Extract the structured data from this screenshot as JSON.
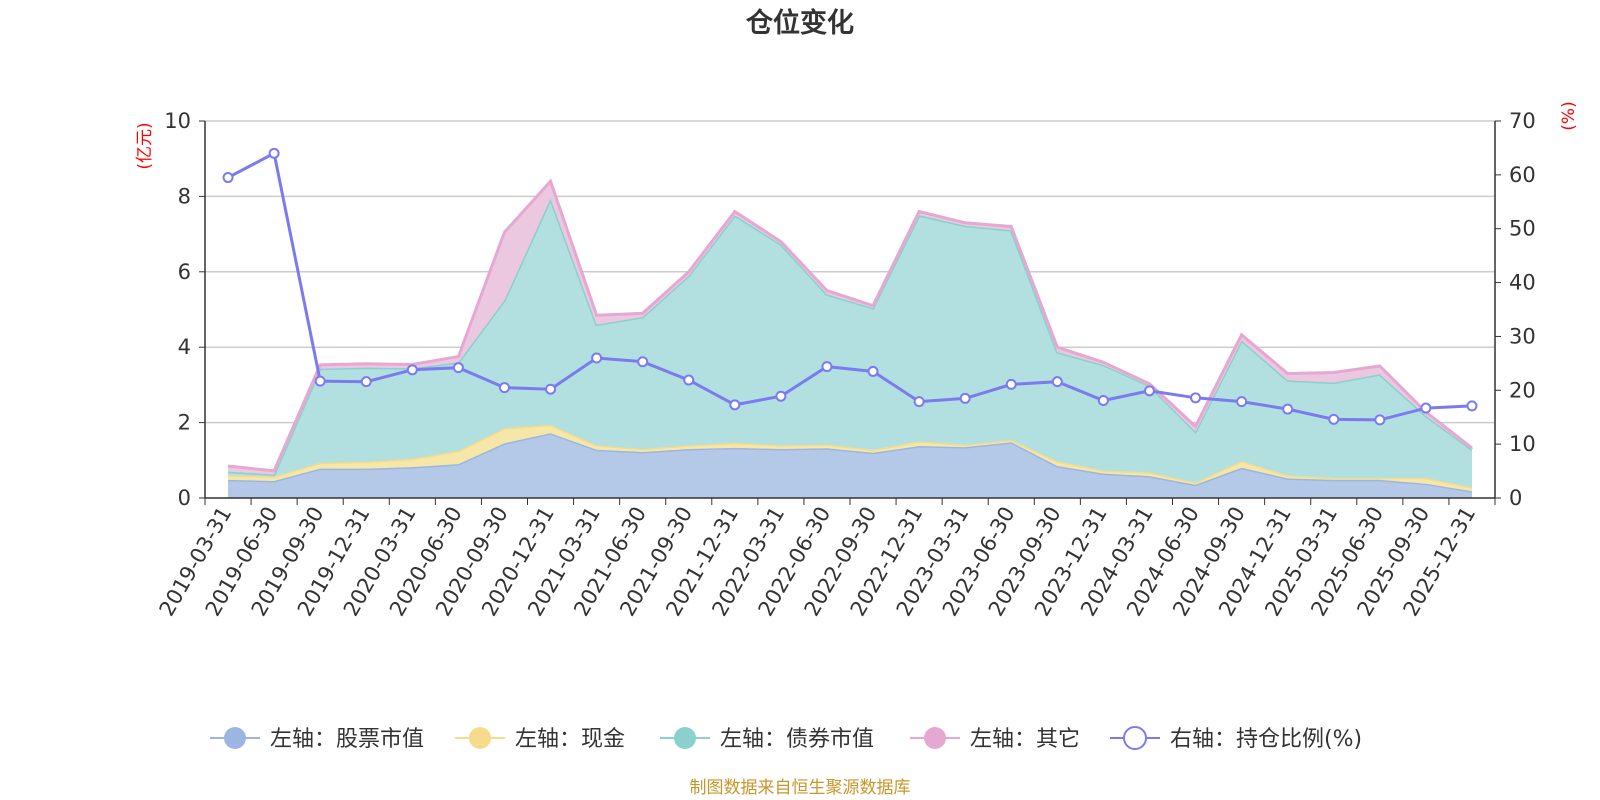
{
  "chart_data": {
    "type": "area",
    "title": "仓位变化",
    "left_unit": "(亿元)",
    "right_unit": "(%)",
    "ylim_left": [
      0,
      10
    ],
    "yticks_left": [
      "0",
      "2",
      "4",
      "6",
      "8",
      "10"
    ],
    "ylim_right": [
      0,
      70
    ],
    "yticks_right": [
      "0",
      "10",
      "20",
      "30",
      "40",
      "50",
      "60",
      "70"
    ],
    "categories": [
      "2019-03-31",
      "2019-06-30",
      "2019-09-30",
      "2019-12-31",
      "2020-03-31",
      "2020-06-30",
      "2020-09-30",
      "2020-12-31",
      "2021-03-31",
      "2021-06-30",
      "2021-09-30",
      "2021-12-31",
      "2022-03-31",
      "2022-06-30",
      "2022-09-30",
      "2022-12-31",
      "2023-03-31",
      "2023-06-30",
      "2023-09-30",
      "2023-12-31",
      "2024-03-31",
      "2024-06-30",
      "2024-09-30",
      "2024-12-31",
      "2025-03-31",
      "2025-06-30",
      "2025-09-30",
      "2025-12-31"
    ],
    "series": [
      {
        "name": "左轴：股票市值",
        "axis": "left",
        "color": "#9bb6e0",
        "fill": "#b4c8e8",
        "values": [
          0.48,
          0.45,
          0.78,
          0.78,
          0.82,
          0.9,
          1.45,
          1.72,
          1.28,
          1.22,
          1.3,
          1.33,
          1.3,
          1.32,
          1.2,
          1.38,
          1.35,
          1.48,
          0.85,
          0.65,
          0.58,
          0.35,
          0.8,
          0.52,
          0.48,
          0.48,
          0.38,
          0.18
        ]
      },
      {
        "name": "左轴：现金",
        "axis": "left",
        "color": "#f5dc8c",
        "fill": "#f6e7a8",
        "values": [
          0.12,
          0.12,
          0.15,
          0.18,
          0.22,
          0.35,
          0.4,
          0.22,
          0.12,
          0.08,
          0.1,
          0.13,
          0.1,
          0.1,
          0.08,
          0.12,
          0.06,
          0.06,
          0.12,
          0.08,
          0.1,
          0.06,
          0.18,
          0.08,
          0.05,
          0.05,
          0.15,
          0.1
        ]
      },
      {
        "name": "左轴：债券市值",
        "axis": "left",
        "color": "#8ad0cc",
        "fill": "#b2e0e0",
        "values": [
          0.1,
          0.05,
          2.5,
          2.5,
          2.4,
          2.35,
          3.4,
          6.0,
          3.2,
          3.5,
          4.5,
          6.04,
          5.33,
          3.98,
          3.76,
          6.0,
          5.81,
          5.56,
          2.9,
          2.8,
          2.3,
          1.35,
          3.2,
          2.52,
          2.53,
          2.75,
          1.65,
          1.0
        ]
      },
      {
        "name": "左轴：其它",
        "axis": "left",
        "color": "#e6a8d2",
        "fill": "#ecc8e0",
        "values": [
          0.15,
          0.1,
          0.1,
          0.1,
          0.1,
          0.15,
          1.8,
          0.46,
          0.25,
          0.1,
          0.1,
          0.1,
          0.07,
          0.1,
          0.06,
          0.1,
          0.08,
          0.1,
          0.13,
          0.07,
          0.05,
          0.14,
          0.15,
          0.18,
          0.27,
          0.22,
          0.1,
          0.05
        ]
      },
      {
        "name": "右轴：持仓比例(%)",
        "axis": "right",
        "color": "#7b7bef",
        "values": [
          59.5,
          64.0,
          21.7,
          21.6,
          23.8,
          24.2,
          20.5,
          20.2,
          26.0,
          25.3,
          21.9,
          17.3,
          18.9,
          24.4,
          23.5,
          17.9,
          18.5,
          21.1,
          21.6,
          18.1,
          19.9,
          18.6,
          17.9,
          16.5,
          14.6,
          14.5,
          16.7,
          17.1
        ]
      }
    ]
  },
  "footer": {
    "source": "制图数据来自恒生聚源数据库"
  }
}
